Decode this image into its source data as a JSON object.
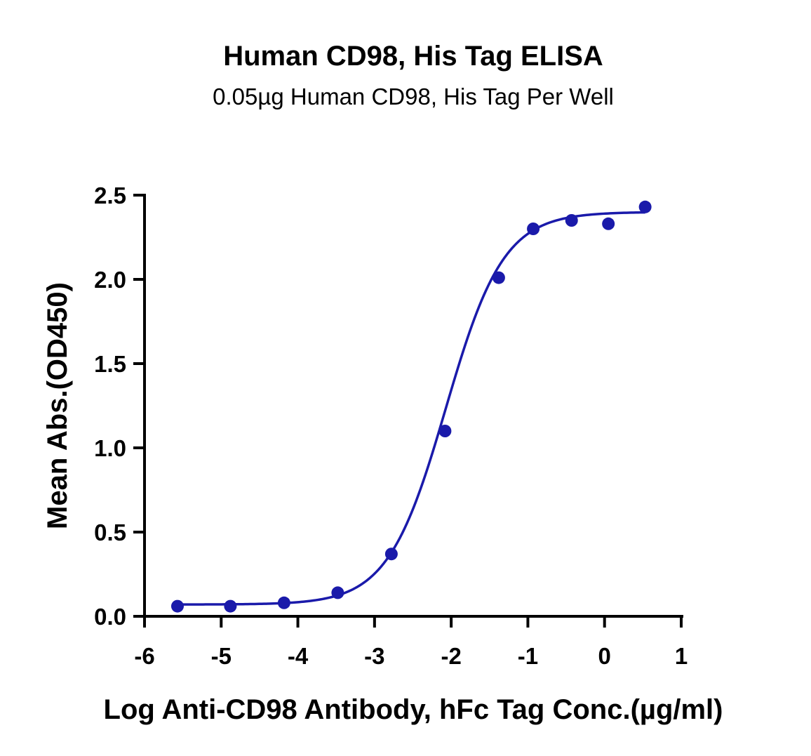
{
  "colors": {
    "series": "#1a1aaa",
    "axis": "#000000",
    "background": "#ffffff"
  },
  "chart_data": {
    "type": "scatter",
    "title": "Human CD98, His Tag ELISA",
    "subtitle": "0.05µg Human CD98, His Tag Per Well",
    "xlabel": "Log Anti-CD98 Antibody, hFc Tag Conc.(µg/ml)",
    "ylabel": "Mean Abs.(OD450)",
    "xlim": [
      -6,
      1
    ],
    "ylim": [
      0,
      2.5
    ],
    "x_ticks": [
      -6,
      -5,
      -4,
      -3,
      -2,
      -1,
      0,
      1
    ],
    "x_tick_labels": [
      "-6",
      "-5",
      "-4",
      "-3",
      "-2",
      "-1",
      "0",
      "1"
    ],
    "y_ticks": [
      0,
      0.5,
      1,
      1.5,
      2,
      2.5
    ],
    "y_tick_labels": [
      "0.0",
      "0.5",
      "1.0",
      "1.5",
      "2.0",
      "2.5"
    ],
    "grid": false,
    "legend": "none",
    "series": [
      {
        "x": [
          -5.57,
          -4.88,
          -4.18,
          -3.48,
          -2.78,
          -2.08,
          -1.38,
          -0.93,
          -0.43,
          0.05,
          0.53
        ],
        "y": [
          0.06,
          0.06,
          0.08,
          0.14,
          0.37,
          1.1,
          2.01,
          2.3,
          2.35,
          2.33,
          2.43
        ],
        "marker": "circle",
        "fit": {
          "model": "four-parameter logistic",
          "bottom": 0.07,
          "top": 2.4,
          "log_ec50": -2.07,
          "hill_slope": 1.15
        }
      }
    ]
  }
}
